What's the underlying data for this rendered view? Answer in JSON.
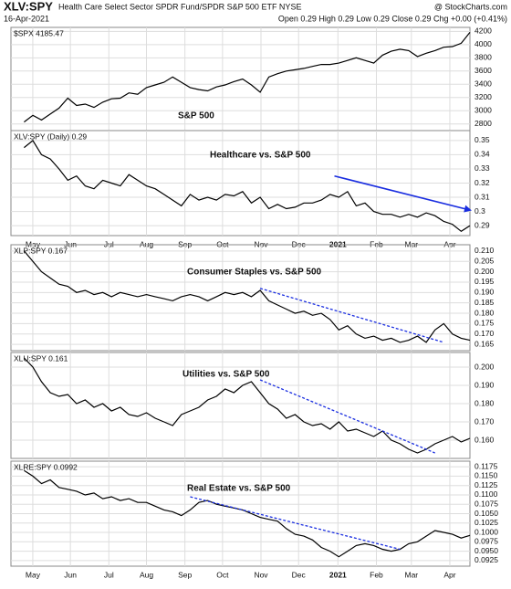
{
  "header": {
    "symbol": "XLV:SPY",
    "name": "Health Care Select Sector SPDR Fund/SPDR S&P 500 ETF NYSE",
    "date": "16-Apr-2021",
    "quote": "Open 0.29 High 0.29 Low 0.29 Close 0.29 Chg +0.00 (+0.41%)",
    "source": "@ StockCharts.com"
  },
  "chart_data": [
    {
      "type": "line",
      "legend": "$SPX 4185.47",
      "annotation": "S&P 500",
      "color": "#000000",
      "values": [
        2830,
        2930,
        2860,
        2950,
        3040,
        3190,
        3080,
        3100,
        3050,
        3130,
        3180,
        3190,
        3270,
        3250,
        3350,
        3390,
        3430,
        3510,
        3430,
        3350,
        3320,
        3300,
        3360,
        3390,
        3440,
        3480,
        3390,
        3280,
        3510,
        3560,
        3600,
        3620,
        3640,
        3670,
        3700,
        3700,
        3720,
        3760,
        3800,
        3760,
        3720,
        3840,
        3900,
        3930,
        3910,
        3820,
        3870,
        3910,
        3960,
        3970,
        4020,
        4185
      ],
      "ylim": [
        2700,
        4260
      ],
      "yticks": [
        2800,
        3000,
        3200,
        3400,
        3600,
        3800,
        4000,
        4200
      ],
      "grid": true
    },
    {
      "type": "line",
      "legend": "XLV:SPY (Daily) 0.29",
      "annotation": "Healthcare vs. S&P 500",
      "color": "#000000",
      "values": [
        0.345,
        0.35,
        0.34,
        0.337,
        0.33,
        0.322,
        0.325,
        0.318,
        0.316,
        0.322,
        0.32,
        0.318,
        0.326,
        0.322,
        0.318,
        0.316,
        0.312,
        0.308,
        0.304,
        0.312,
        0.308,
        0.31,
        0.308,
        0.312,
        0.311,
        0.314,
        0.306,
        0.31,
        0.302,
        0.305,
        0.302,
        0.303,
        0.306,
        0.306,
        0.308,
        0.312,
        0.31,
        0.314,
        0.304,
        0.306,
        0.3,
        0.298,
        0.298,
        0.296,
        0.298,
        0.296,
        0.299,
        0.297,
        0.293,
        0.291,
        0.286,
        0.29
      ],
      "ylim": [
        0.283,
        0.357
      ],
      "yticks": [
        0.29,
        0.3,
        0.31,
        0.32,
        0.33,
        0.34,
        0.35
      ],
      "grid": true,
      "xlim": [
        -1.5,
        51
      ],
      "xticks": [
        {
          "value": 1,
          "label": "May"
        },
        {
          "value": 5.3,
          "label": "Jun"
        },
        {
          "value": 9.7,
          "label": "Jul"
        },
        {
          "value": 14,
          "label": "Aug"
        },
        {
          "value": 18.4,
          "label": "Sep"
        },
        {
          "value": 22.7,
          "label": "Oct"
        },
        {
          "value": 27.1,
          "label": "Nov"
        },
        {
          "value": 31.4,
          "label": "Dec"
        },
        {
          "value": 35.9,
          "label": "2021"
        },
        {
          "value": 40.3,
          "label": "Feb"
        },
        {
          "value": 44.3,
          "label": "Mar"
        },
        {
          "value": 48.7,
          "label": "Apr"
        }
      ],
      "trendline": {
        "x": [
          35.5,
          51
        ],
        "y": [
          0.325,
          0.301
        ],
        "color": "#1a2ee0",
        "style": "solid",
        "arrow": true
      }
    },
    {
      "type": "line",
      "legend": "XLP:SPY 0.167",
      "annotation": "Consumer Staples vs. S&P 500",
      "color": "#000000",
      "values": [
        0.21,
        0.205,
        0.2,
        0.197,
        0.194,
        0.193,
        0.19,
        0.191,
        0.189,
        0.19,
        0.188,
        0.19,
        0.189,
        0.188,
        0.189,
        0.188,
        0.187,
        0.186,
        0.188,
        0.189,
        0.188,
        0.186,
        0.188,
        0.19,
        0.189,
        0.19,
        0.188,
        0.191,
        0.186,
        0.184,
        0.182,
        0.18,
        0.181,
        0.179,
        0.18,
        0.177,
        0.172,
        0.174,
        0.17,
        0.168,
        0.169,
        0.167,
        0.168,
        0.166,
        0.167,
        0.169,
        0.166,
        0.172,
        0.175,
        0.17,
        0.168,
        0.167
      ],
      "ylim": [
        0.162,
        0.213
      ],
      "yticks": [
        0.165,
        {
          "value": 0.17,
          "label": "0.170"
        },
        0.175,
        {
          "value": 0.18,
          "label": "0.180"
        },
        0.185,
        {
          "value": 0.19,
          "label": "0.190"
        },
        0.195,
        {
          "value": 0.2,
          "label": "0.200"
        },
        0.205,
        {
          "value": 0.21,
          "label": "0.210"
        }
      ],
      "grid": true,
      "trendline": {
        "x": [
          27,
          48
        ],
        "y": [
          0.192,
          0.166
        ],
        "color": "#1a2ee0",
        "style": "dashed",
        "arrow": false
      }
    },
    {
      "type": "line",
      "legend": "XLU:SPY 0.161",
      "annotation": "Utilities vs. S&P 500",
      "color": "#000000",
      "values": [
        0.205,
        0.2,
        0.192,
        0.186,
        0.184,
        0.185,
        0.18,
        0.182,
        0.178,
        0.18,
        0.176,
        0.178,
        0.174,
        0.173,
        0.175,
        0.172,
        0.17,
        0.168,
        0.174,
        0.176,
        0.178,
        0.182,
        0.184,
        0.188,
        0.186,
        0.19,
        0.192,
        0.186,
        0.18,
        0.177,
        0.172,
        0.174,
        0.17,
        0.168,
        0.169,
        0.166,
        0.17,
        0.165,
        0.166,
        0.164,
        0.162,
        0.165,
        0.16,
        0.158,
        0.155,
        0.153,
        0.155,
        0.158,
        0.16,
        0.162,
        0.159,
        0.161
      ],
      "ylim": [
        0.15,
        0.208
      ],
      "yticks": [
        {
          "value": 0.16,
          "label": "0.160"
        },
        {
          "value": 0.17,
          "label": "0.170"
        },
        {
          "value": 0.18,
          "label": "0.180"
        },
        {
          "value": 0.19,
          "label": "0.190"
        },
        {
          "value": 0.2,
          "label": "0.200"
        }
      ],
      "grid": true,
      "trendline": {
        "x": [
          27,
          47
        ],
        "y": [
          0.193,
          0.153
        ],
        "color": "#1a2ee0",
        "style": "dashed",
        "arrow": false
      }
    },
    {
      "type": "line",
      "legend": "XLRE:SPY 0.0992",
      "annotation": "Real Estate vs. S&P 500",
      "color": "#000000",
      "values": [
        0.1165,
        0.115,
        0.113,
        0.114,
        0.112,
        0.1115,
        0.111,
        0.11,
        0.1105,
        0.109,
        0.1095,
        0.1085,
        0.109,
        0.108,
        0.108,
        0.107,
        0.106,
        0.1055,
        0.1045,
        0.106,
        0.108,
        0.1085,
        0.1075,
        0.107,
        0.1065,
        0.106,
        0.105,
        0.104,
        0.1035,
        0.103,
        0.101,
        0.0995,
        0.099,
        0.098,
        0.096,
        0.095,
        0.0935,
        0.095,
        0.0965,
        0.097,
        0.0965,
        0.0955,
        0.095,
        0.0955,
        0.097,
        0.0975,
        0.099,
        0.1005,
        0.1,
        0.0995,
        0.0985,
        0.0992
      ],
      "ylim": [
        0.091,
        0.119
      ],
      "yticks": [
        0.0925,
        {
          "value": 0.095,
          "label": "0.0950"
        },
        0.0975,
        {
          "value": 0.1,
          "label": "0.1000"
        },
        0.1025,
        {
          "value": 0.105,
          "label": "0.1050"
        },
        0.1075,
        {
          "value": 0.11,
          "label": "0.1100"
        },
        0.1125,
        {
          "value": 0.115,
          "label": "0.1150"
        },
        0.1175
      ],
      "grid": true,
      "xlim": [
        -1.5,
        51
      ],
      "xticks": [
        {
          "value": 1,
          "label": "May"
        },
        {
          "value": 5.3,
          "label": "Jun"
        },
        {
          "value": 9.7,
          "label": "Jul"
        },
        {
          "value": 14,
          "label": "Aug"
        },
        {
          "value": 18.4,
          "label": "Sep"
        },
        {
          "value": 22.7,
          "label": "Oct"
        },
        {
          "value": 27.1,
          "label": "Nov"
        },
        {
          "value": 31.4,
          "label": "Dec"
        },
        {
          "value": 35.9,
          "label": "2021"
        },
        {
          "value": 40.3,
          "label": "Feb"
        },
        {
          "value": 44.3,
          "label": "Mar"
        },
        {
          "value": 48.7,
          "label": "Apr"
        }
      ],
      "trendline": {
        "x": [
          19,
          43
        ],
        "y": [
          0.1095,
          0.0955
        ],
        "color": "#1a2ee0",
        "style": "dashed",
        "arrow": false
      }
    }
  ]
}
